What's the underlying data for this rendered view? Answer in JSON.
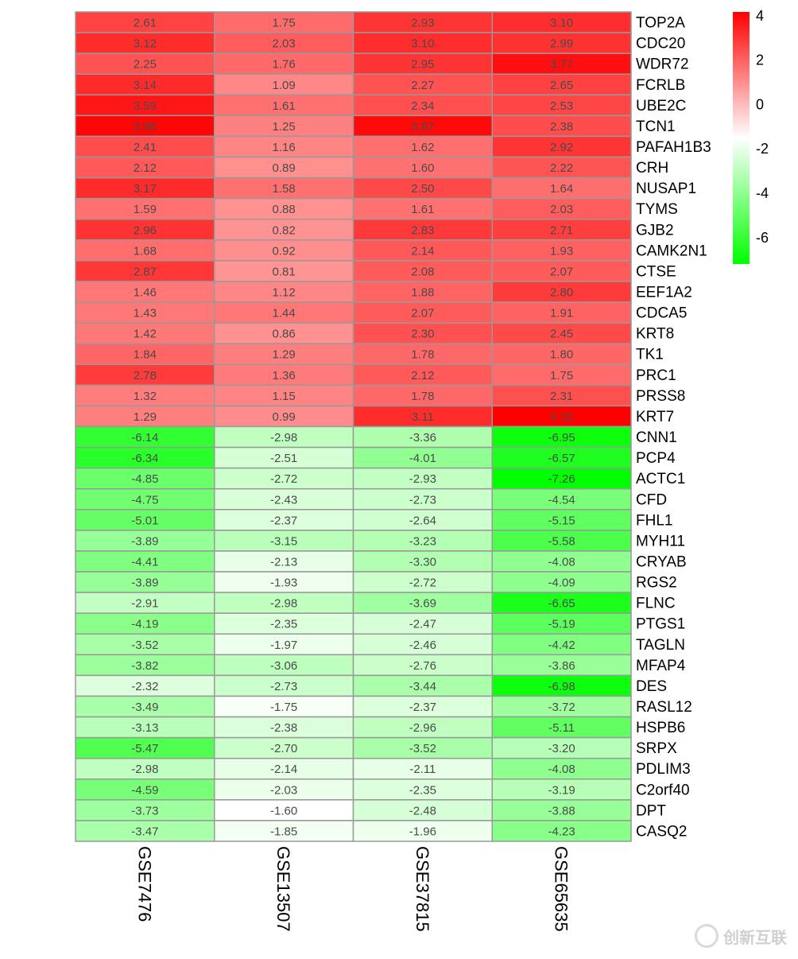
{
  "chart_data": {
    "type": "heatmap",
    "columns": [
      "GSE7476",
      "GSE13507",
      "GSE37815",
      "GSE65635"
    ],
    "rows": [
      "TOP2A",
      "CDC20",
      "WDR72",
      "FCRLB",
      "UBE2C",
      "TCN1",
      "PAFAH1B3",
      "CRH",
      "NUSAP1",
      "TYMS",
      "GJB2",
      "CAMK2N1",
      "CTSE",
      "EEF1A2",
      "CDCA5",
      "KRT8",
      "TK1",
      "PRC1",
      "PRSS8",
      "KRT7",
      "CNN1",
      "PCP4",
      "ACTC1",
      "CFD",
      "FHL1",
      "MYH11",
      "CRYAB",
      "RGS2",
      "FLNC",
      "PTGS1",
      "TAGLN",
      "MFAP4",
      "DES",
      "RASL12",
      "HSPB6",
      "SRPX",
      "PDLIM3",
      "C2orf40",
      "DPT",
      "CASQ2"
    ],
    "values": [
      [
        2.61,
        1.75,
        2.93,
        3.1
      ],
      [
        3.12,
        2.03,
        3.1,
        2.99
      ],
      [
        2.25,
        1.76,
        2.95,
        3.77
      ],
      [
        3.14,
        1.09,
        2.27,
        2.65
      ],
      [
        3.59,
        1.61,
        2.34,
        2.53
      ],
      [
        3.96,
        1.25,
        3.87,
        2.38
      ],
      [
        2.41,
        1.16,
        1.62,
        2.92
      ],
      [
        2.12,
        0.89,
        1.6,
        2.22
      ],
      [
        3.17,
        1.58,
        2.5,
        1.64
      ],
      [
        1.59,
        0.88,
        1.61,
        2.03
      ],
      [
        2.96,
        0.82,
        2.83,
        2.71
      ],
      [
        1.68,
        0.92,
        2.14,
        1.93
      ],
      [
        2.87,
        0.81,
        2.08,
        2.07
      ],
      [
        1.46,
        1.12,
        1.88,
        2.8
      ],
      [
        1.43,
        1.44,
        2.07,
        1.91
      ],
      [
        1.42,
        0.86,
        2.3,
        2.45
      ],
      [
        1.84,
        1.29,
        1.78,
        1.8
      ],
      [
        2.78,
        1.36,
        2.12,
        1.75
      ],
      [
        1.32,
        1.15,
        1.78,
        2.31
      ],
      [
        1.29,
        0.99,
        3.11,
        4.1
      ],
      [
        -6.14,
        -2.98,
        -3.36,
        -6.95
      ],
      [
        -6.34,
        -2.51,
        -4.01,
        -6.57
      ],
      [
        -4.85,
        -2.72,
        -2.93,
        -7.26
      ],
      [
        -4.75,
        -2.43,
        -2.73,
        -4.54
      ],
      [
        -5.01,
        -2.37,
        -2.64,
        -5.15
      ],
      [
        -3.89,
        -3.15,
        -3.23,
        -5.58
      ],
      [
        -4.41,
        -2.13,
        -3.3,
        -4.08
      ],
      [
        -3.89,
        -1.93,
        -2.72,
        -4.09
      ],
      [
        -2.91,
        -2.98,
        -3.69,
        -6.65
      ],
      [
        -4.19,
        -2.35,
        -2.47,
        -5.19
      ],
      [
        -3.52,
        -1.97,
        -2.46,
        -4.42
      ],
      [
        -3.82,
        -3.06,
        -2.76,
        -3.86
      ],
      [
        -2.32,
        -2.73,
        -3.44,
        -6.98
      ],
      [
        -3.49,
        -1.75,
        -2.37,
        -3.72
      ],
      [
        -3.13,
        -2.38,
        -2.96,
        -5.11
      ],
      [
        -5.47,
        -2.7,
        -3.52,
        -3.2
      ],
      [
        -2.98,
        -2.14,
        -2.11,
        -4.08
      ],
      [
        -4.59,
        -2.03,
        -2.35,
        -3.19
      ],
      [
        -3.73,
        -1.6,
        -2.48,
        -3.88
      ],
      [
        -3.47,
        -1.85,
        -1.96,
        -4.23
      ]
    ],
    "color_scale": {
      "low": "#00ff00",
      "mid": "#ffffff",
      "high": "#ff0000",
      "range": [
        -7.26,
        4.1
      ]
    },
    "legend": {
      "ticks": [
        "4",
        "2",
        "0",
        "-2",
        "-4",
        "-6"
      ],
      "placement": "top-right"
    },
    "cell_border_color": "#999999"
  },
  "watermark": "创新互联"
}
